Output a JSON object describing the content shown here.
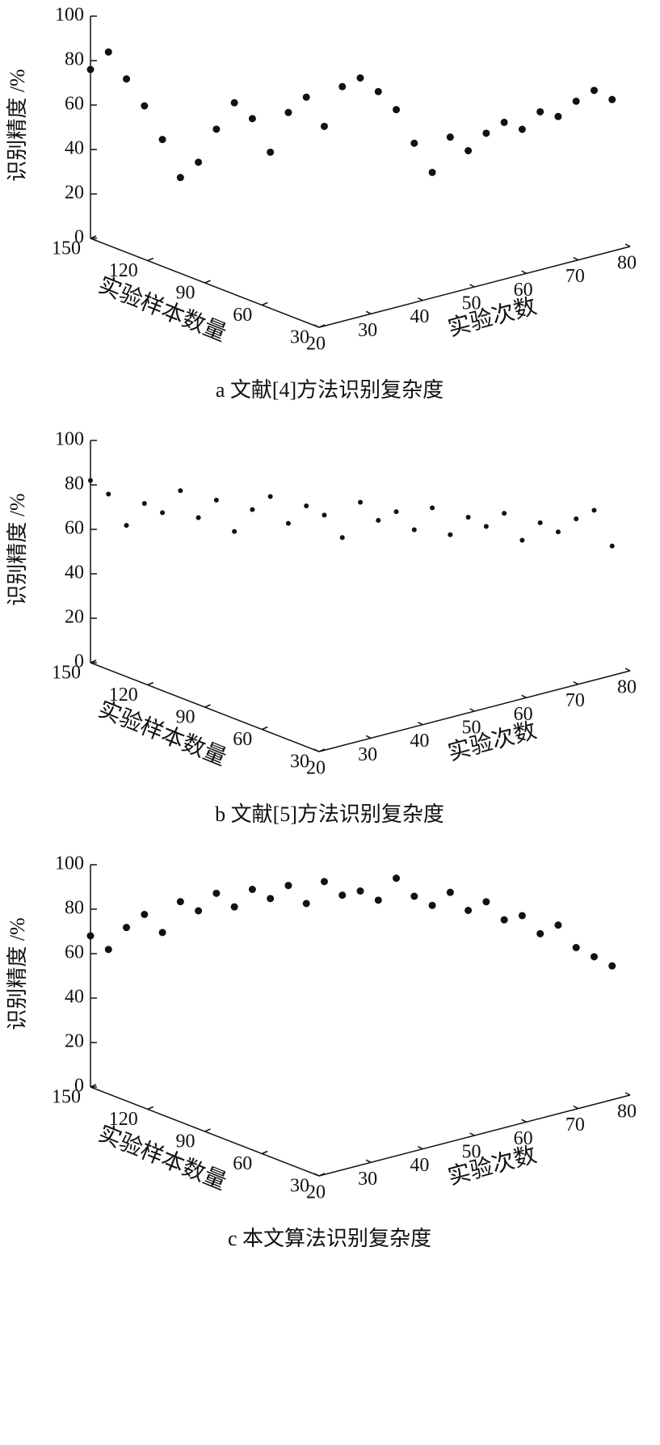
{
  "chart_data": [
    {
      "type": "scatter3d",
      "caption": "a 文献[4]方法识别复杂度",
      "zlabel": "识别精度 /%",
      "ylabel": "实验样本数量",
      "xlabel": "实验次数",
      "zlim": [
        0,
        100
      ],
      "zticks": [
        0,
        20,
        40,
        60,
        80,
        100
      ],
      "ylim": [
        30,
        150
      ],
      "yticks": [
        150,
        120,
        90,
        60,
        30
      ],
      "xlim": [
        20,
        80
      ],
      "xticks": [
        20,
        30,
        40,
        50,
        60,
        70,
        80
      ],
      "color": "#111111",
      "x": [
        20,
        22,
        24,
        26,
        28,
        30,
        32,
        34,
        36,
        38,
        40,
        42,
        44,
        46,
        48,
        50,
        52,
        54,
        56,
        58,
        60,
        62,
        64,
        66,
        68,
        70,
        72,
        74,
        76,
        78
      ],
      "y": [
        150,
        146,
        142,
        138,
        134,
        130,
        126,
        122,
        118,
        114,
        110,
        106,
        102,
        98,
        94,
        90,
        86,
        82,
        78,
        74,
        70,
        66,
        62,
        58,
        54,
        50,
        46,
        42,
        38,
        34
      ],
      "values": [
        76,
        84,
        72,
        60,
        45,
        28,
        35,
        50,
        62,
        55,
        40,
        58,
        65,
        52,
        70,
        74,
        68,
        60,
        45,
        32,
        48,
        42,
        50,
        55,
        52,
        60,
        58,
        65,
        70,
        66
      ]
    },
    {
      "type": "scatter3d",
      "caption": "b 文献[5]方法识别复杂度",
      "zlabel": "识别精度 /%",
      "ylabel": "实验样本数量",
      "xlabel": "实验次数",
      "zlim": [
        0,
        100
      ],
      "zticks": [
        0,
        20,
        40,
        60,
        80,
        100
      ],
      "ylim": [
        30,
        150
      ],
      "yticks": [
        150,
        120,
        90,
        60,
        30
      ],
      "xlim": [
        20,
        80
      ],
      "xticks": [
        20,
        30,
        40,
        50,
        60,
        70,
        80
      ],
      "color": "#111111",
      "x": [
        20,
        22,
        24,
        26,
        28,
        30,
        32,
        34,
        36,
        38,
        40,
        42,
        44,
        46,
        48,
        50,
        52,
        54,
        56,
        58,
        60,
        62,
        64,
        66,
        68,
        70,
        72,
        74,
        76,
        78
      ],
      "y": [
        150,
        146,
        142,
        138,
        134,
        130,
        126,
        122,
        118,
        114,
        110,
        106,
        102,
        98,
        94,
        90,
        86,
        82,
        78,
        74,
        70,
        66,
        62,
        58,
        54,
        50,
        46,
        42,
        38,
        34
      ],
      "values": [
        82,
        76,
        62,
        72,
        68,
        78,
        66,
        74,
        60,
        70,
        76,
        64,
        72,
        68,
        58,
        74,
        66,
        70,
        62,
        72,
        60,
        68,
        64,
        70,
        58,
        66,
        62,
        68,
        72,
        56
      ]
    },
    {
      "type": "scatter3d",
      "caption": "c 本文算法识别复杂度",
      "zlabel": "识别精度 /%",
      "ylabel": "实验样本数量",
      "xlabel": "实验次数",
      "zlim": [
        0,
        100
      ],
      "zticks": [
        0,
        20,
        40,
        60,
        80,
        100
      ],
      "ylim": [
        30,
        150
      ],
      "yticks": [
        150,
        120,
        90,
        60,
        30
      ],
      "xlim": [
        20,
        80
      ],
      "xticks": [
        20,
        30,
        40,
        50,
        60,
        70,
        80
      ],
      "color": "#111111",
      "x": [
        20,
        22,
        24,
        26,
        28,
        30,
        32,
        34,
        36,
        38,
        40,
        42,
        44,
        46,
        48,
        50,
        52,
        54,
        56,
        58,
        60,
        62,
        64,
        66,
        68,
        70,
        72,
        74,
        76,
        78
      ],
      "y": [
        150,
        146,
        142,
        138,
        134,
        130,
        126,
        122,
        118,
        114,
        110,
        106,
        102,
        98,
        94,
        90,
        86,
        82,
        78,
        74,
        70,
        66,
        62,
        58,
        54,
        50,
        46,
        42,
        38,
        34
      ],
      "values": [
        68,
        62,
        72,
        78,
        70,
        84,
        80,
        88,
        82,
        90,
        86,
        92,
        84,
        94,
        88,
        90,
        86,
        96,
        88,
        84,
        90,
        82,
        86,
        78,
        80,
        72,
        76,
        66,
        62,
        58
      ]
    }
  ]
}
